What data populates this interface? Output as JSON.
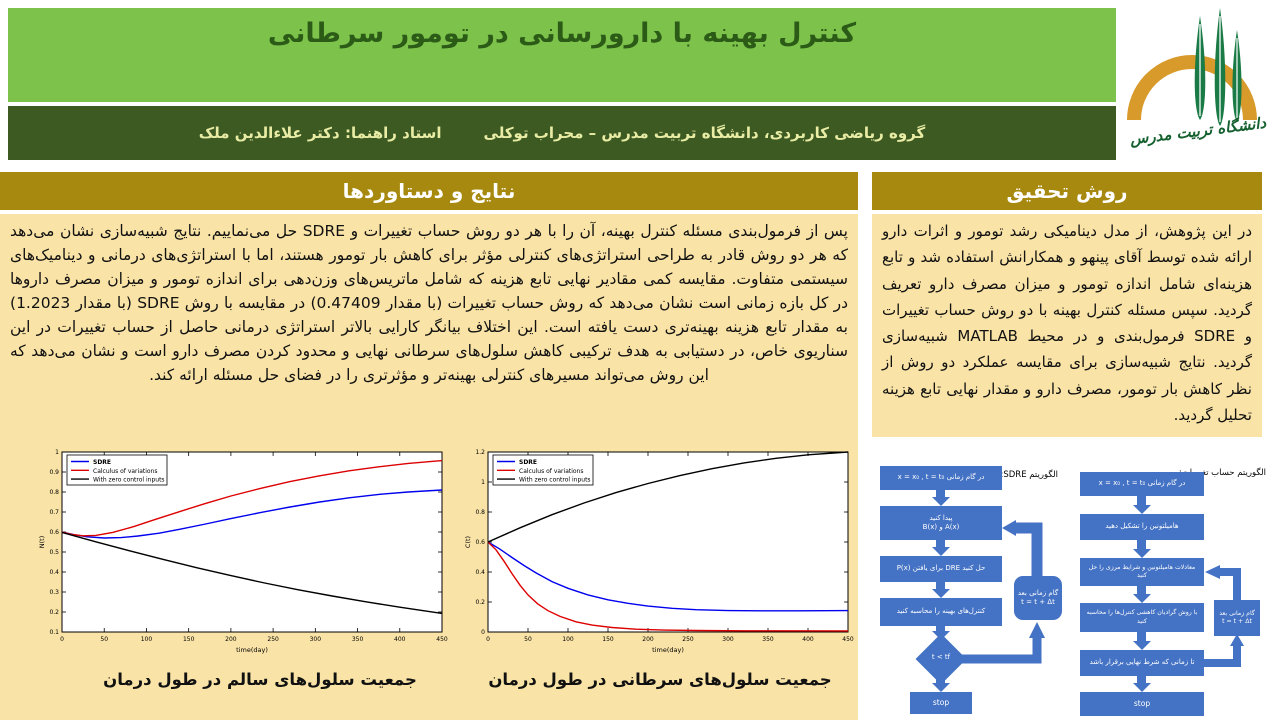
{
  "poster": {
    "title": "کنترل بهینه با دارورسانی در تومور سرطانی",
    "subtitle_affiliation": "گروه ریاضی کاربردی، دانشگاه تربیت مدرس – محراب توکلی",
    "subtitle_supervisor": "استاد راهنما: دکتر علاءالدین ملک",
    "logo_caption": "دانشگاه تربیت مدرس"
  },
  "colors": {
    "band_light_green": "#7CC24B",
    "band_dark_green": "#3C5A22",
    "section_header_gold": "#A8890F",
    "panel_cream": "#F9E3A6",
    "flowchart_blue": "#4472C4",
    "series_blue": "#0000EE",
    "series_red": "#DD0000",
    "series_black": "#000000"
  },
  "results": {
    "heading": "نتایج و دستاوردها",
    "body": "پس از فرمول‌بندی مسئله کنترل بهینه، آن را با هر دو روش حساب تغییرات و SDRE حل می‌نماییم. نتایج شبیه‌سازی نشان می‌دهد که هر دو روش قادر به طراحی استراتژی‌های کنترلی مؤثر برای کاهش بار تومور هستند، اما با استراتژی‌های درمانی و دینامیک‌های سیستمی متفاوت. مقایسه کمی مقادیر نهایی تابع هزینه که شامل ماتریس‌های وزن‌دهی برای اندازه تومور و میزان مصرف داروها در کل بازه زمانی است نشان می‌دهد که روش حساب تغییرات (با مقدار 0.47409) در مقایسه با روش SDRE (با مقدار 1.2023) به مقدار تابع هزینه بهینه‌تری دست یافته است. این اختلاف بیانگر کارایی بالاتر استراتژی درمانی حاصل از حساب تغییرات در این سناریوی خاص، در دستیابی به هدف ترکیبی کاهش سلول‌های سرطانی نهایی و محدود کردن مصرف دارو است و نشان می‌دهد که این روش می‌تواند مسیرهای کنترلی بهینه‌تر و مؤثرتری را در فضای حل مسئله ارائه کند.",
    "caption_healthy": "جمعیت سلول‌های سالم در طول درمان",
    "caption_cancer": "جمعیت سلول‌های سرطانی در طول درمان"
  },
  "method": {
    "heading": "روش تحقیق",
    "body": "در این پژوهش، از مدل دینامیکی رشد تومور و اثرات دارو ارائه شده توسط آقای پینهو و همکارانش استفاده شد و تابع هزینه‌ای شامل اندازه تومور و میزان مصرف دارو تعریف گردید. سپس مسئله کنترل بهینه با دو روش حساب تغییرات و SDRE فرمول‌بندی و در محیط MATLAB شبیه‌سازی گردید. نتایج شبیه‌سازی برای مقایسه عملکرد دو روش از نظر کاهش بار تومور، مصرف دارو و مقدار نهایی تابع هزینه تحلیل گردید."
  },
  "flowcharts": {
    "sdre": {
      "label": "الگوریتم SDRE:",
      "steps": [
        "در گام زمانی  x = x₀ , t = t₀",
        "پیدا کنید\nA(x) و B(x)",
        "حل کنید DRE برای یافتن P(x)",
        "کنترل‌های بهینه را محاسبه کنید"
      ],
      "decision": "t < tf",
      "loop": "گام زمانی بعد\nt = t + Δt",
      "stop": "stop"
    },
    "variations": {
      "label": "الگوریتم حساب تغییرات:",
      "steps": [
        "در گام زمانی  x = x₀ , t = t₀",
        "هامیلتونین را تشکیل دهید",
        "معادلات هامیلتونین و شرایط مرزی را حل کنید",
        "با روش گرادیان کاهشی کنترل‌ها را محاسبه کنید",
        "تا زمانی که شرط نهایی برقرار باشد"
      ],
      "loop": "گام زمانی بعد\nt = t + Δt",
      "stop": "stop"
    }
  },
  "chart_data": [
    {
      "type": "line",
      "title": "",
      "xlabel": "time(day)",
      "ylabel": "N(t)",
      "xlim": [
        0,
        450
      ],
      "ylim": [
        0.1,
        1.0
      ],
      "xticks": [
        0,
        50,
        100,
        150,
        200,
        250,
        300,
        350,
        400,
        450
      ],
      "yticks": [
        0.1,
        0.2,
        0.3,
        0.4,
        0.5,
        0.6,
        0.7,
        0.8,
        0.9,
        1
      ],
      "grid": false,
      "legend_position": "top-left",
      "series": [
        {
          "name": "SDRE",
          "color": "#0000EE",
          "points": [
            [
              0,
              0.6
            ],
            [
              15,
              0.586
            ],
            [
              30,
              0.576
            ],
            [
              50,
              0.57
            ],
            [
              70,
              0.572
            ],
            [
              90,
              0.58
            ],
            [
              115,
              0.594
            ],
            [
              140,
              0.614
            ],
            [
              170,
              0.64
            ],
            [
              200,
              0.667
            ],
            [
              235,
              0.697
            ],
            [
              270,
              0.725
            ],
            [
              305,
              0.75
            ],
            [
              340,
              0.771
            ],
            [
              375,
              0.788
            ],
            [
              410,
              0.8
            ],
            [
              450,
              0.81
            ]
          ]
        },
        {
          "name": "Calculus of variations",
          "color": "#DD0000",
          "points": [
            [
              0,
              0.6
            ],
            [
              12,
              0.588
            ],
            [
              25,
              0.581
            ],
            [
              40,
              0.583
            ],
            [
              60,
              0.598
            ],
            [
              85,
              0.627
            ],
            [
              110,
              0.662
            ],
            [
              140,
              0.703
            ],
            [
              170,
              0.743
            ],
            [
              200,
              0.78
            ],
            [
              235,
              0.818
            ],
            [
              270,
              0.852
            ],
            [
              305,
              0.881
            ],
            [
              340,
              0.906
            ],
            [
              375,
              0.926
            ],
            [
              410,
              0.943
            ],
            [
              450,
              0.957
            ]
          ]
        },
        {
          "name": "With zero control inputs",
          "color": "#000000",
          "points": [
            [
              0,
              0.598
            ],
            [
              40,
              0.551
            ],
            [
              80,
              0.506
            ],
            [
              120,
              0.463
            ],
            [
              160,
              0.421
            ],
            [
              200,
              0.382
            ],
            [
              240,
              0.345
            ],
            [
              280,
              0.311
            ],
            [
              320,
              0.28
            ],
            [
              360,
              0.251
            ],
            [
              400,
              0.224
            ],
            [
              450,
              0.193
            ]
          ]
        }
      ]
    },
    {
      "type": "line",
      "title": "",
      "xlabel": "time(day)",
      "ylabel": "C(t)",
      "xlim": [
        0,
        450
      ],
      "ylim": [
        0,
        1.2
      ],
      "xticks": [
        0,
        50,
        100,
        150,
        200,
        250,
        300,
        350,
        400,
        450
      ],
      "yticks": [
        0,
        0.2,
        0.4,
        0.6,
        0.8,
        1,
        1.2
      ],
      "grid": false,
      "legend_position": "top-left",
      "series": [
        {
          "name": "SDRE",
          "color": "#0000EE",
          "points": [
            [
              0,
              0.6
            ],
            [
              15,
              0.552
            ],
            [
              30,
              0.497
            ],
            [
              45,
              0.443
            ],
            [
              60,
              0.394
            ],
            [
              80,
              0.336
            ],
            [
              100,
              0.291
            ],
            [
              125,
              0.247
            ],
            [
              150,
              0.215
            ],
            [
              175,
              0.191
            ],
            [
              200,
              0.173
            ],
            [
              230,
              0.158
            ],
            [
              260,
              0.149
            ],
            [
              300,
              0.143
            ],
            [
              340,
              0.141
            ],
            [
              390,
              0.141
            ],
            [
              450,
              0.143
            ]
          ]
        },
        {
          "name": "Calculus of variations",
          "color": "#DD0000",
          "points": [
            [
              0,
              0.6
            ],
            [
              10,
              0.548
            ],
            [
              20,
              0.472
            ],
            [
              30,
              0.389
            ],
            [
              40,
              0.312
            ],
            [
              50,
              0.247
            ],
            [
              62,
              0.188
            ],
            [
              75,
              0.142
            ],
            [
              90,
              0.104
            ],
            [
              110,
              0.068
            ],
            [
              130,
              0.046
            ],
            [
              155,
              0.03
            ],
            [
              185,
              0.019
            ],
            [
              220,
              0.013
            ],
            [
              260,
              0.01
            ],
            [
              320,
              0.008
            ],
            [
              450,
              0.007
            ]
          ]
        },
        {
          "name": "With zero control inputs",
          "color": "#000000",
          "points": [
            [
              0,
              0.6
            ],
            [
              40,
              0.695
            ],
            [
              80,
              0.782
            ],
            [
              120,
              0.86
            ],
            [
              160,
              0.929
            ],
            [
              200,
              0.99
            ],
            [
              240,
              1.043
            ],
            [
              280,
              1.089
            ],
            [
              320,
              1.127
            ],
            [
              360,
              1.158
            ],
            [
              400,
              1.181
            ],
            [
              450,
              1.2
            ]
          ]
        }
      ]
    }
  ]
}
